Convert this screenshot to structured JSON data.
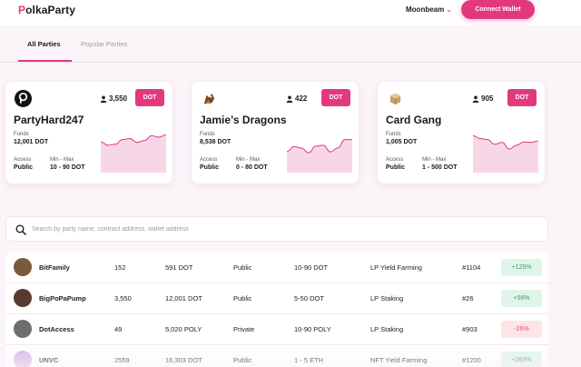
{
  "header": {
    "logo_first": "P",
    "logo_rest": "olkaParty",
    "network": "Moonbeam",
    "connect_label": "Connect Wallet"
  },
  "tabs": [
    {
      "label": "All Parties",
      "active": true
    },
    {
      "label": "Popular Parties",
      "active": false
    }
  ],
  "cards": [
    {
      "name": "PartyHard247",
      "members": "3,550",
      "button": "DOT",
      "funds_label": "Funds",
      "funds": "12,001 DOT",
      "access_label": "Access",
      "access": "Public",
      "range_label": "Min - Max",
      "range": "10 - 90 DOT",
      "trend": [
        0.35,
        0.42,
        0.4,
        0.3,
        0.28,
        0.36,
        0.32,
        0.22,
        0.25,
        0.2
      ],
      "icon": "polkadot-logo-icon"
    },
    {
      "name": "Jamie’s Dragons",
      "members": "422",
      "button": "DOT",
      "funds_label": "Funds",
      "funds": "8,538 DOT",
      "access_label": "Access",
      "access": "Public",
      "range_label": "Min - Max",
      "range": "0 - 80 DOT",
      "trend": [
        0.55,
        0.45,
        0.48,
        0.58,
        0.44,
        0.42,
        0.56,
        0.48,
        0.3,
        0.3
      ],
      "icon": "dragon-avatar-icon"
    },
    {
      "name": "Card Gang",
      "members": "905",
      "button": "DOT",
      "funds_label": "Funds",
      "funds": "1,005 DOT",
      "access_label": "Access",
      "access": "Public",
      "range_label": "Min - Max",
      "range": "1 - 500 DOT",
      "trend": [
        0.22,
        0.28,
        0.3,
        0.4,
        0.36,
        0.5,
        0.42,
        0.35,
        0.36,
        0.33
      ],
      "icon": "card-box-icon"
    }
  ],
  "search": {
    "placeholder": "Search by party name, contract address, wallet address"
  },
  "rows": [
    {
      "name": "BitFamily",
      "members": "152",
      "funds": "591 DOT",
      "access": "Public",
      "range": "10-90 DOT",
      "strategy": "LP Yield Farming",
      "rank": "#1104",
      "change": "+125%",
      "positive": true,
      "avatar_color": "#7a5a3a"
    },
    {
      "name": "BigPoPaPump",
      "members": "3,550",
      "funds": "12,001 DOT",
      "access": "Public",
      "range": "5-50 DOT",
      "strategy": "LP Staking",
      "rank": "#26",
      "change": "+56%",
      "positive": true,
      "avatar_color": "#5a3a2e"
    },
    {
      "name": "DotAccess",
      "members": "49",
      "funds": "5,020 POLY",
      "access": "Private",
      "range": "10-90 POLY",
      "strategy": "LP Staking",
      "rank": "#903",
      "change": "-26%",
      "positive": false,
      "avatar_color": "#6e6e6e"
    },
    {
      "name": "UNVC",
      "members": "2559",
      "funds": "16,303 DOT",
      "access": "Public",
      "range": "1 - 5 ETH",
      "strategy": "NFT Yield Farming",
      "rank": "#1200",
      "change": "+263%",
      "positive": true,
      "avatar_color": "#d8b8e6"
    }
  ],
  "colors": {
    "accent": "#e2397e",
    "chart_fill": "#f7d6e8",
    "chart_line": "#e2397e"
  }
}
